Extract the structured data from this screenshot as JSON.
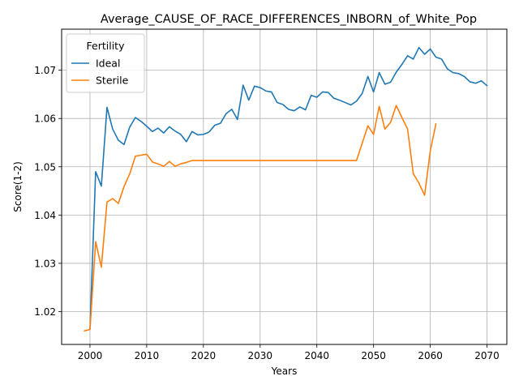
{
  "chart_data": {
    "type": "line",
    "title": "Average_CAUSE_OF_RACE_DIFFERENCES_INBORN_of_White_Pop",
    "xlabel": "Years",
    "ylabel": "Score(1-2)",
    "xlim": [
      1995.0,
      2073.5
    ],
    "ylim": [
      1.0132,
      1.0785
    ],
    "xticks": [
      2000,
      2010,
      2020,
      2030,
      2040,
      2050,
      2060,
      2070
    ],
    "yticks": [
      1.02,
      1.03,
      1.04,
      1.05,
      1.06,
      1.07
    ],
    "grid": true,
    "legend": {
      "title": "Fertility",
      "placement": "top-left"
    },
    "series": [
      {
        "name": "Ideal",
        "color": "#1f77b4",
        "x": [
          2000,
          2001,
          2002,
          2003,
          2004,
          2005,
          2006,
          2007,
          2008,
          2009,
          2010,
          2011,
          2012,
          2013,
          2014,
          2015,
          2016,
          2017,
          2018,
          2019,
          2020,
          2021,
          2022,
          2023,
          2024,
          2025,
          2026,
          2027,
          2028,
          2029,
          2030,
          2031,
          2032,
          2033,
          2034,
          2035,
          2036,
          2037,
          2038,
          2039,
          2040,
          2041,
          2042,
          2043,
          2044,
          2045,
          2046,
          2047,
          2048,
          2049,
          2050,
          2051,
          2052,
          2053,
          2054,
          2055,
          2056,
          2057,
          2058,
          2059,
          2060,
          2061,
          2062,
          2063,
          2064,
          2065,
          2066,
          2067,
          2068,
          2069,
          2070
        ],
        "y": [
          1.0165,
          1.049,
          1.046,
          1.0623,
          1.0578,
          1.0555,
          1.0546,
          1.0582,
          1.0602,
          1.0594,
          1.0584,
          1.0573,
          1.058,
          1.057,
          1.0583,
          1.0574,
          1.0567,
          1.0552,
          1.0573,
          1.0566,
          1.0567,
          1.0572,
          1.0586,
          1.059,
          1.061,
          1.0619,
          1.0598,
          1.0669,
          1.0638,
          1.0667,
          1.0664,
          1.0657,
          1.0655,
          1.0633,
          1.0629,
          1.0619,
          1.0616,
          1.0624,
          1.0618,
          1.0648,
          1.0644,
          1.0655,
          1.0654,
          1.0642,
          1.0638,
          1.0633,
          1.0628,
          1.0636,
          1.0652,
          1.0687,
          1.0655,
          1.0695,
          1.0671,
          1.0675,
          1.0696,
          1.0712,
          1.073,
          1.0723,
          1.0747,
          1.0733,
          1.0744,
          1.0727,
          1.0723,
          1.0703,
          1.0695,
          1.0693,
          1.0687,
          1.0676,
          1.0673,
          1.0678,
          1.0668
        ]
      },
      {
        "name": "Sterile",
        "color": "#ff7f0e",
        "x": [
          1999,
          2000,
          2001,
          2002,
          2003,
          2004,
          2005,
          2006,
          2007,
          2008,
          2009,
          2010,
          2011,
          2012,
          2013,
          2014,
          2015,
          2016,
          2017,
          2018,
          2019,
          2020,
          2021,
          2022,
          2023,
          2024,
          2025,
          2026,
          2027,
          2028,
          2029,
          2030,
          2031,
          2032,
          2033,
          2034,
          2035,
          2036,
          2037,
          2038,
          2039,
          2040,
          2041,
          2042,
          2043,
          2044,
          2045,
          2046,
          2047,
          2048,
          2049,
          2050,
          2051,
          2052,
          2053,
          2054,
          2055,
          2056,
          2057,
          2058,
          2059,
          2060,
          2061
        ],
        "y": [
          1.016,
          1.0163,
          1.0345,
          1.0292,
          1.0427,
          1.0434,
          1.0424,
          1.0459,
          1.0485,
          1.0522,
          1.0524,
          1.0526,
          1.051,
          1.0506,
          1.0501,
          1.0511,
          1.0501,
          1.0506,
          1.0509,
          1.0513,
          1.0513,
          1.0513,
          1.0513,
          1.0513,
          1.0513,
          1.0513,
          1.0513,
          1.0513,
          1.0513,
          1.0513,
          1.0513,
          1.0513,
          1.0513,
          1.0513,
          1.0513,
          1.0513,
          1.0513,
          1.0513,
          1.0513,
          1.0513,
          1.0513,
          1.0513,
          1.0513,
          1.0513,
          1.0513,
          1.0513,
          1.0513,
          1.0513,
          1.0513,
          1.0549,
          1.0585,
          1.0567,
          1.0625,
          1.0578,
          1.0592,
          1.0627,
          1.0602,
          1.0578,
          1.0486,
          1.0466,
          1.0441,
          1.0533,
          1.0589
        ]
      }
    ]
  }
}
